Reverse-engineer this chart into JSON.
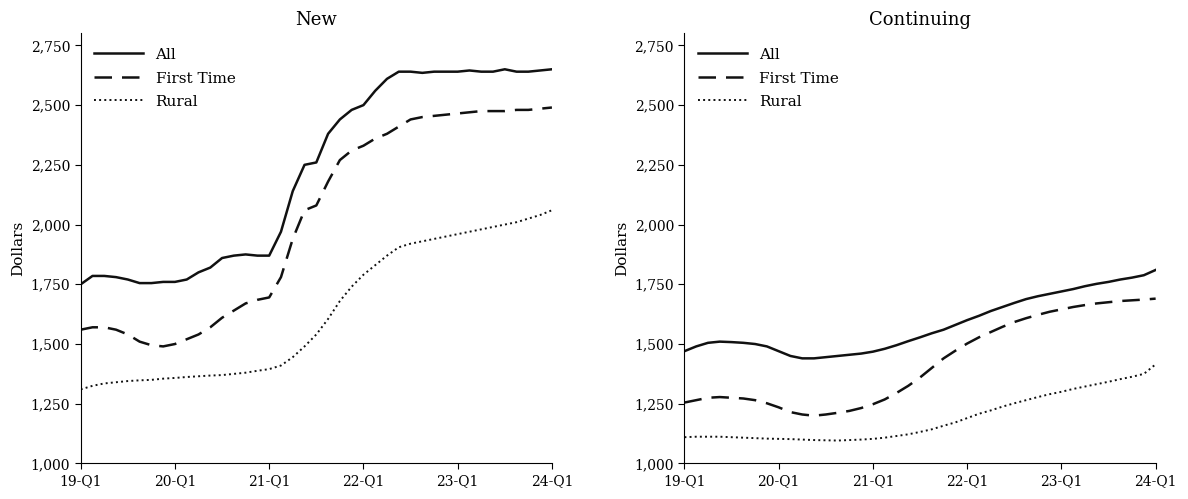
{
  "new_all": [
    1750,
    1785,
    1785,
    1780,
    1770,
    1755,
    1755,
    1760,
    1760,
    1770,
    1800,
    1820,
    1860,
    1870,
    1875,
    1870,
    1870,
    1970,
    2140,
    2250,
    2260,
    2380,
    2440,
    2480,
    2500,
    2560,
    2610,
    2640,
    2640,
    2635,
    2640,
    2640,
    2640,
    2645,
    2640,
    2640,
    2650,
    2640,
    2640,
    2645,
    2650
  ],
  "new_first": [
    1560,
    1570,
    1570,
    1560,
    1540,
    1510,
    1495,
    1490,
    1500,
    1520,
    1540,
    1570,
    1610,
    1640,
    1670,
    1685,
    1695,
    1780,
    1940,
    2060,
    2080,
    2180,
    2270,
    2310,
    2330,
    2360,
    2380,
    2410,
    2440,
    2450,
    2455,
    2460,
    2465,
    2470,
    2475,
    2475,
    2475,
    2480,
    2480,
    2485,
    2490
  ],
  "new_rural": [
    1310,
    1325,
    1335,
    1340,
    1345,
    1348,
    1350,
    1355,
    1358,
    1362,
    1365,
    1368,
    1370,
    1375,
    1380,
    1388,
    1395,
    1410,
    1445,
    1490,
    1540,
    1605,
    1680,
    1740,
    1790,
    1830,
    1870,
    1905,
    1920,
    1930,
    1940,
    1950,
    1960,
    1970,
    1980,
    1990,
    2000,
    2010,
    2025,
    2040,
    2060
  ],
  "cont_all": [
    1470,
    1490,
    1505,
    1510,
    1508,
    1505,
    1500,
    1490,
    1470,
    1450,
    1440,
    1440,
    1445,
    1450,
    1455,
    1460,
    1468,
    1480,
    1495,
    1512,
    1528,
    1545,
    1560,
    1580,
    1600,
    1618,
    1638,
    1655,
    1672,
    1688,
    1700,
    1710,
    1720,
    1730,
    1742,
    1752,
    1760,
    1770,
    1778,
    1788,
    1810
  ],
  "cont_first": [
    1255,
    1265,
    1275,
    1278,
    1275,
    1272,
    1265,
    1252,
    1235,
    1215,
    1205,
    1200,
    1205,
    1212,
    1220,
    1232,
    1248,
    1268,
    1295,
    1325,
    1360,
    1400,
    1440,
    1472,
    1502,
    1528,
    1550,
    1572,
    1592,
    1608,
    1622,
    1635,
    1645,
    1655,
    1663,
    1670,
    1675,
    1680,
    1683,
    1686,
    1690
  ],
  "cont_rural": [
    1110,
    1112,
    1112,
    1112,
    1110,
    1108,
    1106,
    1104,
    1103,
    1102,
    1100,
    1098,
    1097,
    1096,
    1098,
    1100,
    1103,
    1108,
    1115,
    1122,
    1132,
    1143,
    1158,
    1172,
    1190,
    1208,
    1222,
    1238,
    1252,
    1265,
    1278,
    1290,
    1300,
    1312,
    1322,
    1332,
    1342,
    1353,
    1363,
    1375,
    1415
  ],
  "n_points": 41,
  "title_new": "New",
  "title_cont": "Continuing",
  "ylabel": "Dollars",
  "ylim": [
    1000,
    2800
  ],
  "yticks": [
    1000,
    1250,
    1500,
    1750,
    2000,
    2250,
    2500,
    2750
  ],
  "xtick_positions": [
    0,
    8,
    16,
    24,
    32,
    40
  ],
  "xtick_labels": [
    "19-Q1",
    "20-Q1",
    "21-Q1",
    "22-Q1",
    "23-Q1",
    "24-Q1"
  ],
  "legend_labels": [
    "All",
    "First Time",
    "Rural"
  ],
  "line_color": "#111111",
  "bg_color": "#ffffff",
  "title_fontsize": 13,
  "label_fontsize": 11,
  "tick_fontsize": 10,
  "legend_fontsize": 11,
  "lw_solid": 1.8,
  "lw_dashed": 1.8,
  "lw_dotted": 1.4
}
